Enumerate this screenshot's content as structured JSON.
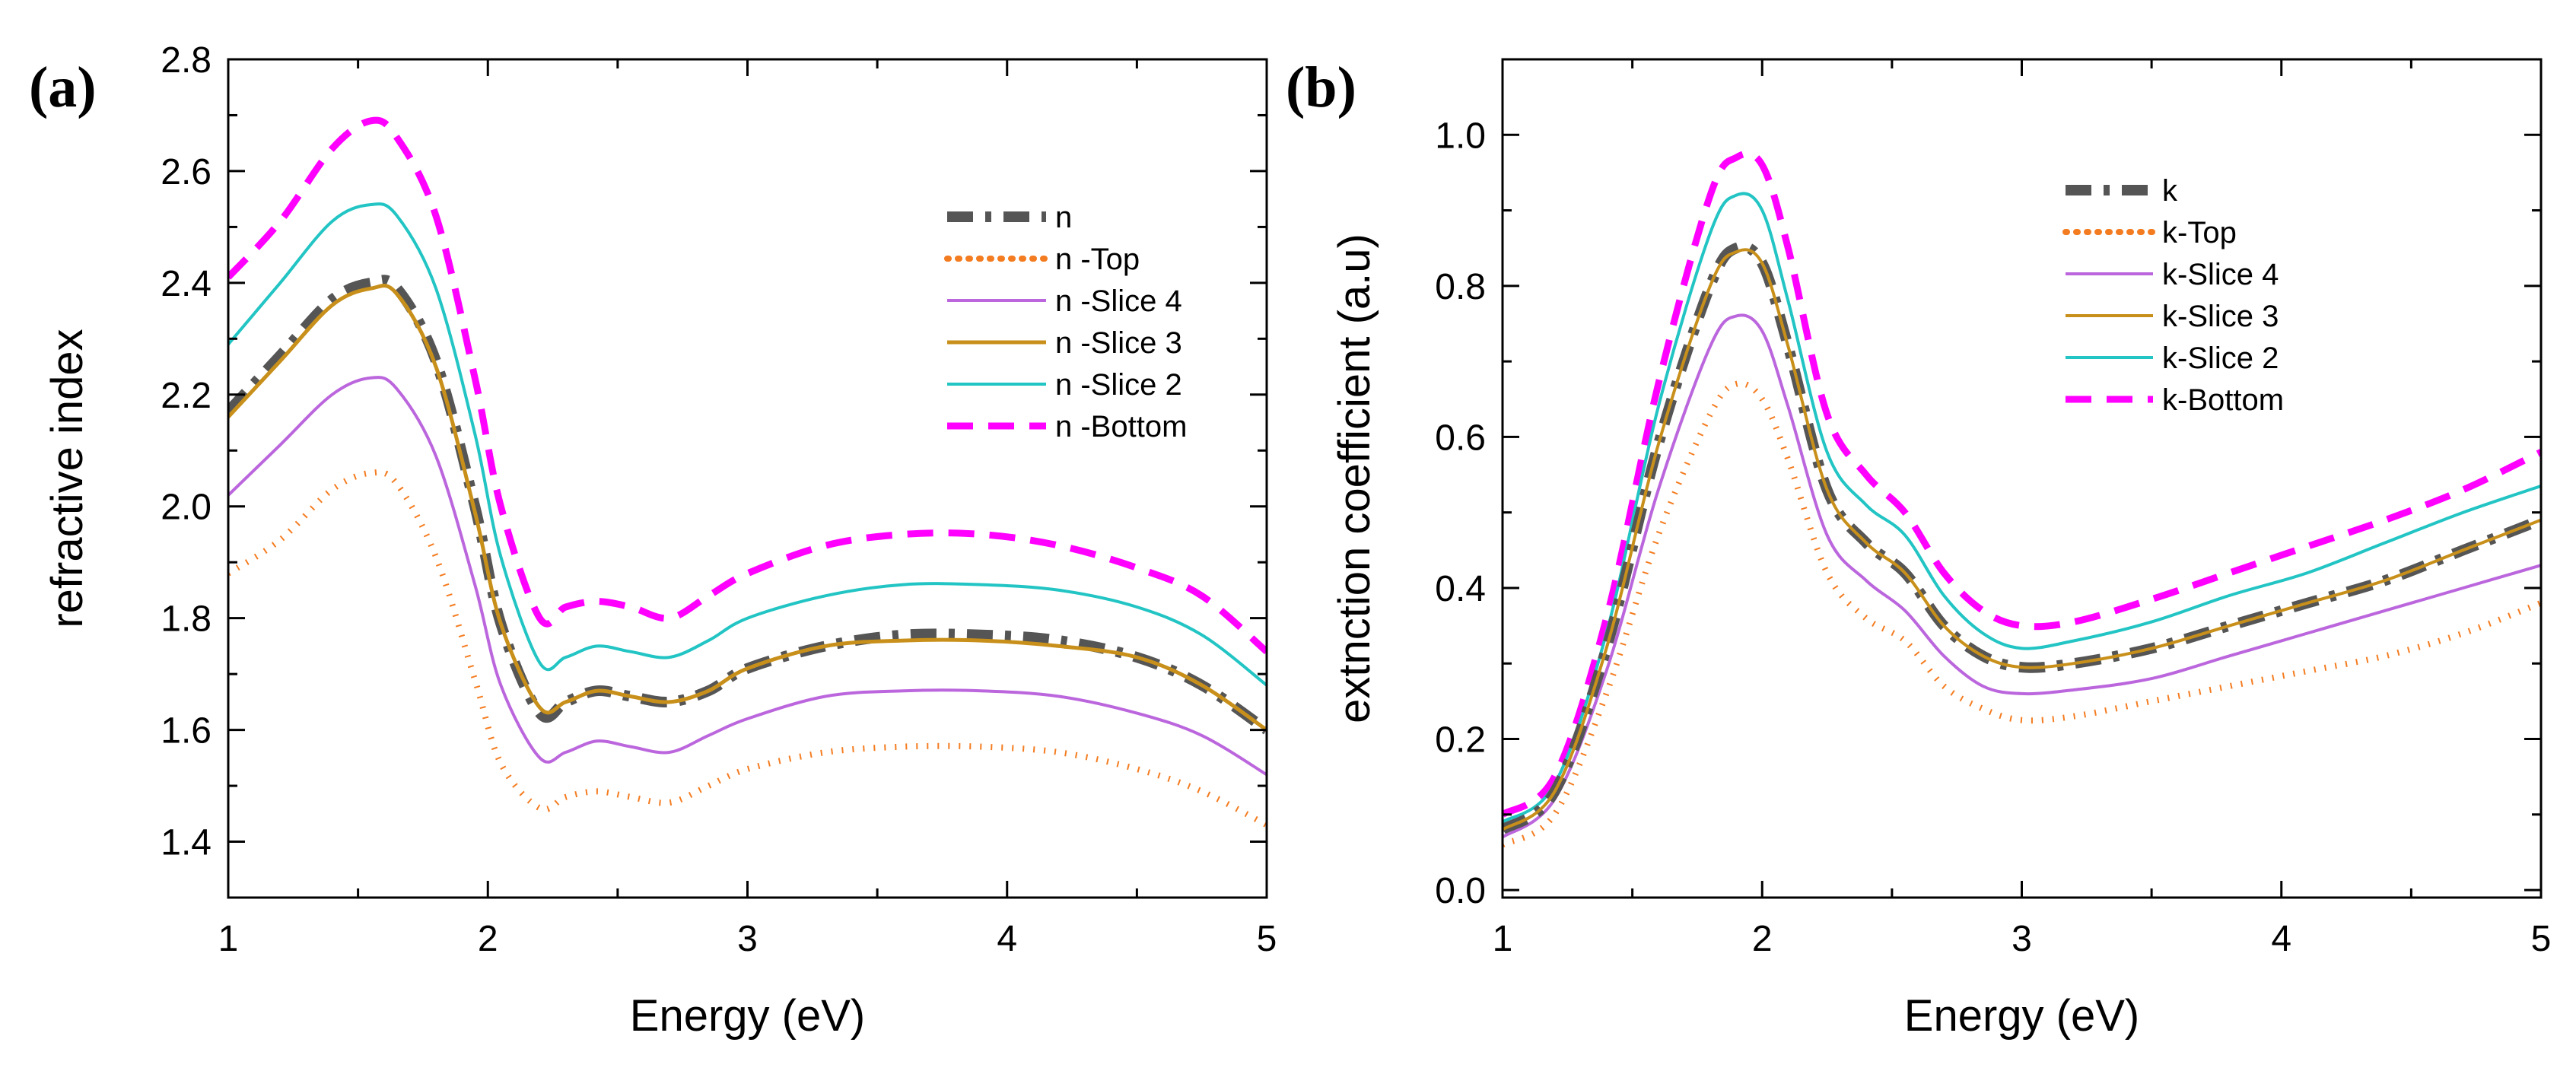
{
  "chart_data": [
    {
      "panel_label": "(a)",
      "type": "line",
      "xlabel": "Energy  (eV)",
      "ylabel": "refractive index",
      "xlim": [
        1,
        5
      ],
      "ylim": [
        1.3,
        2.8
      ],
      "xticks": [
        1,
        2,
        3,
        4,
        5
      ],
      "yticks": [
        1.4,
        1.6,
        1.8,
        2.0,
        2.2,
        2.4,
        2.6,
        2.8
      ],
      "ytick_labels": [
        "1.4",
        "1.6",
        "1.8",
        "2.0",
        "2.2",
        "2.4",
        "2.6",
        "2.8"
      ],
      "legend": "top-right",
      "x": [
        1.0,
        1.2,
        1.4,
        1.55,
        1.65,
        1.8,
        1.95,
        2.05,
        2.2,
        2.3,
        2.42,
        2.55,
        2.7,
        2.85,
        3.0,
        3.3,
        3.6,
        3.9,
        4.2,
        4.5,
        4.75,
        5.0
      ],
      "series": [
        {
          "name": "n",
          "color": "#555555",
          "style": "dashdot-bold",
          "values": [
            2.17,
            2.27,
            2.37,
            2.4,
            2.39,
            2.26,
            2.0,
            1.79,
            1.63,
            1.65,
            1.67,
            1.66,
            1.65,
            1.67,
            1.71,
            1.75,
            1.77,
            1.77,
            1.76,
            1.73,
            1.68,
            1.6
          ]
        },
        {
          "name": "n -Top",
          "color": "#f47c20",
          "style": "dotted",
          "values": [
            1.88,
            1.94,
            2.03,
            2.06,
            2.04,
            1.91,
            1.69,
            1.54,
            1.46,
            1.48,
            1.49,
            1.48,
            1.47,
            1.5,
            1.53,
            1.56,
            1.57,
            1.57,
            1.56,
            1.53,
            1.49,
            1.43
          ]
        },
        {
          "name": "n -Slice 4",
          "color": "#bb66dd",
          "style": "solid",
          "values": [
            2.02,
            2.11,
            2.2,
            2.23,
            2.21,
            2.09,
            1.86,
            1.68,
            1.55,
            1.56,
            1.58,
            1.57,
            1.56,
            1.59,
            1.62,
            1.66,
            1.67,
            1.67,
            1.66,
            1.63,
            1.59,
            1.52
          ]
        },
        {
          "name": "n -Slice 3",
          "color": "#c8901a",
          "style": "solid-bold",
          "values": [
            2.16,
            2.26,
            2.36,
            2.39,
            2.38,
            2.25,
            1.99,
            1.79,
            1.64,
            1.65,
            1.67,
            1.66,
            1.65,
            1.67,
            1.71,
            1.75,
            1.76,
            1.76,
            1.75,
            1.73,
            1.68,
            1.6
          ]
        },
        {
          "name": "n -Slice 2",
          "color": "#22c4c4",
          "style": "solid",
          "values": [
            2.29,
            2.4,
            2.51,
            2.54,
            2.52,
            2.39,
            2.13,
            1.91,
            1.72,
            1.73,
            1.75,
            1.74,
            1.73,
            1.76,
            1.8,
            1.84,
            1.86,
            1.86,
            1.85,
            1.82,
            1.77,
            1.68
          ]
        },
        {
          "name": "n -Bottom",
          "color": "#ff00ff",
          "style": "dashed",
          "values": [
            2.41,
            2.51,
            2.64,
            2.69,
            2.66,
            2.52,
            2.23,
            2.0,
            1.8,
            1.82,
            1.83,
            1.82,
            1.8,
            1.84,
            1.88,
            1.93,
            1.95,
            1.95,
            1.93,
            1.89,
            1.84,
            1.74
          ]
        }
      ]
    },
    {
      "panel_label": "(b)",
      "type": "line",
      "xlabel": "Energy (eV)",
      "ylabel": "extnction coefficient (a.u)",
      "xlim": [
        1,
        5
      ],
      "ylim": [
        -0.01,
        1.1
      ],
      "xticks": [
        1,
        2,
        3,
        4,
        5
      ],
      "yticks": [
        0.0,
        0.2,
        0.4,
        0.6,
        0.8,
        1.0
      ],
      "ytick_labels": [
        "0.0",
        "0.2",
        "0.4",
        "0.6",
        "0.8",
        "1.0"
      ],
      "legend": "top-right",
      "x": [
        1.0,
        1.2,
        1.4,
        1.6,
        1.8,
        1.9,
        2.0,
        2.1,
        2.25,
        2.4,
        2.55,
        2.7,
        2.85,
        3.0,
        3.2,
        3.5,
        3.8,
        4.1,
        4.4,
        4.7,
        5.0
      ],
      "series": [
        {
          "name": "k",
          "color": "#555555",
          "style": "dashdot-bold",
          "values": [
            0.08,
            0.13,
            0.32,
            0.59,
            0.8,
            0.85,
            0.83,
            0.72,
            0.53,
            0.46,
            0.42,
            0.35,
            0.31,
            0.295,
            0.3,
            0.32,
            0.35,
            0.38,
            0.41,
            0.45,
            0.49
          ]
        },
        {
          "name": "k-Top",
          "color": "#f47c20",
          "style": "dotted",
          "values": [
            0.06,
            0.1,
            0.26,
            0.47,
            0.63,
            0.67,
            0.65,
            0.57,
            0.42,
            0.36,
            0.33,
            0.27,
            0.24,
            0.225,
            0.23,
            0.25,
            0.27,
            0.29,
            0.31,
            0.34,
            0.38
          ]
        },
        {
          "name": "k-Slice 4",
          "color": "#bb66dd",
          "style": "solid",
          "values": [
            0.07,
            0.12,
            0.29,
            0.53,
            0.72,
            0.76,
            0.74,
            0.64,
            0.47,
            0.41,
            0.37,
            0.31,
            0.27,
            0.26,
            0.265,
            0.28,
            0.31,
            0.34,
            0.37,
            0.4,
            0.43
          ]
        },
        {
          "name": "k-Slice 3",
          "color": "#c8901a",
          "style": "solid",
          "values": [
            0.08,
            0.13,
            0.32,
            0.59,
            0.8,
            0.845,
            0.83,
            0.72,
            0.53,
            0.46,
            0.42,
            0.35,
            0.31,
            0.295,
            0.3,
            0.32,
            0.35,
            0.38,
            0.41,
            0.45,
            0.49
          ]
        },
        {
          "name": "k-Slice 2",
          "color": "#22c4c4",
          "style": "solid",
          "values": [
            0.09,
            0.14,
            0.34,
            0.64,
            0.87,
            0.92,
            0.9,
            0.78,
            0.58,
            0.51,
            0.47,
            0.39,
            0.34,
            0.32,
            0.33,
            0.355,
            0.39,
            0.42,
            0.46,
            0.5,
            0.535
          ]
        },
        {
          "name": "k-Bottom",
          "color": "#ff00ff",
          "style": "dashed",
          "values": [
            0.1,
            0.15,
            0.36,
            0.67,
            0.92,
            0.97,
            0.96,
            0.85,
            0.63,
            0.55,
            0.5,
            0.42,
            0.37,
            0.35,
            0.355,
            0.385,
            0.42,
            0.455,
            0.49,
            0.53,
            0.58
          ]
        }
      ]
    }
  ]
}
